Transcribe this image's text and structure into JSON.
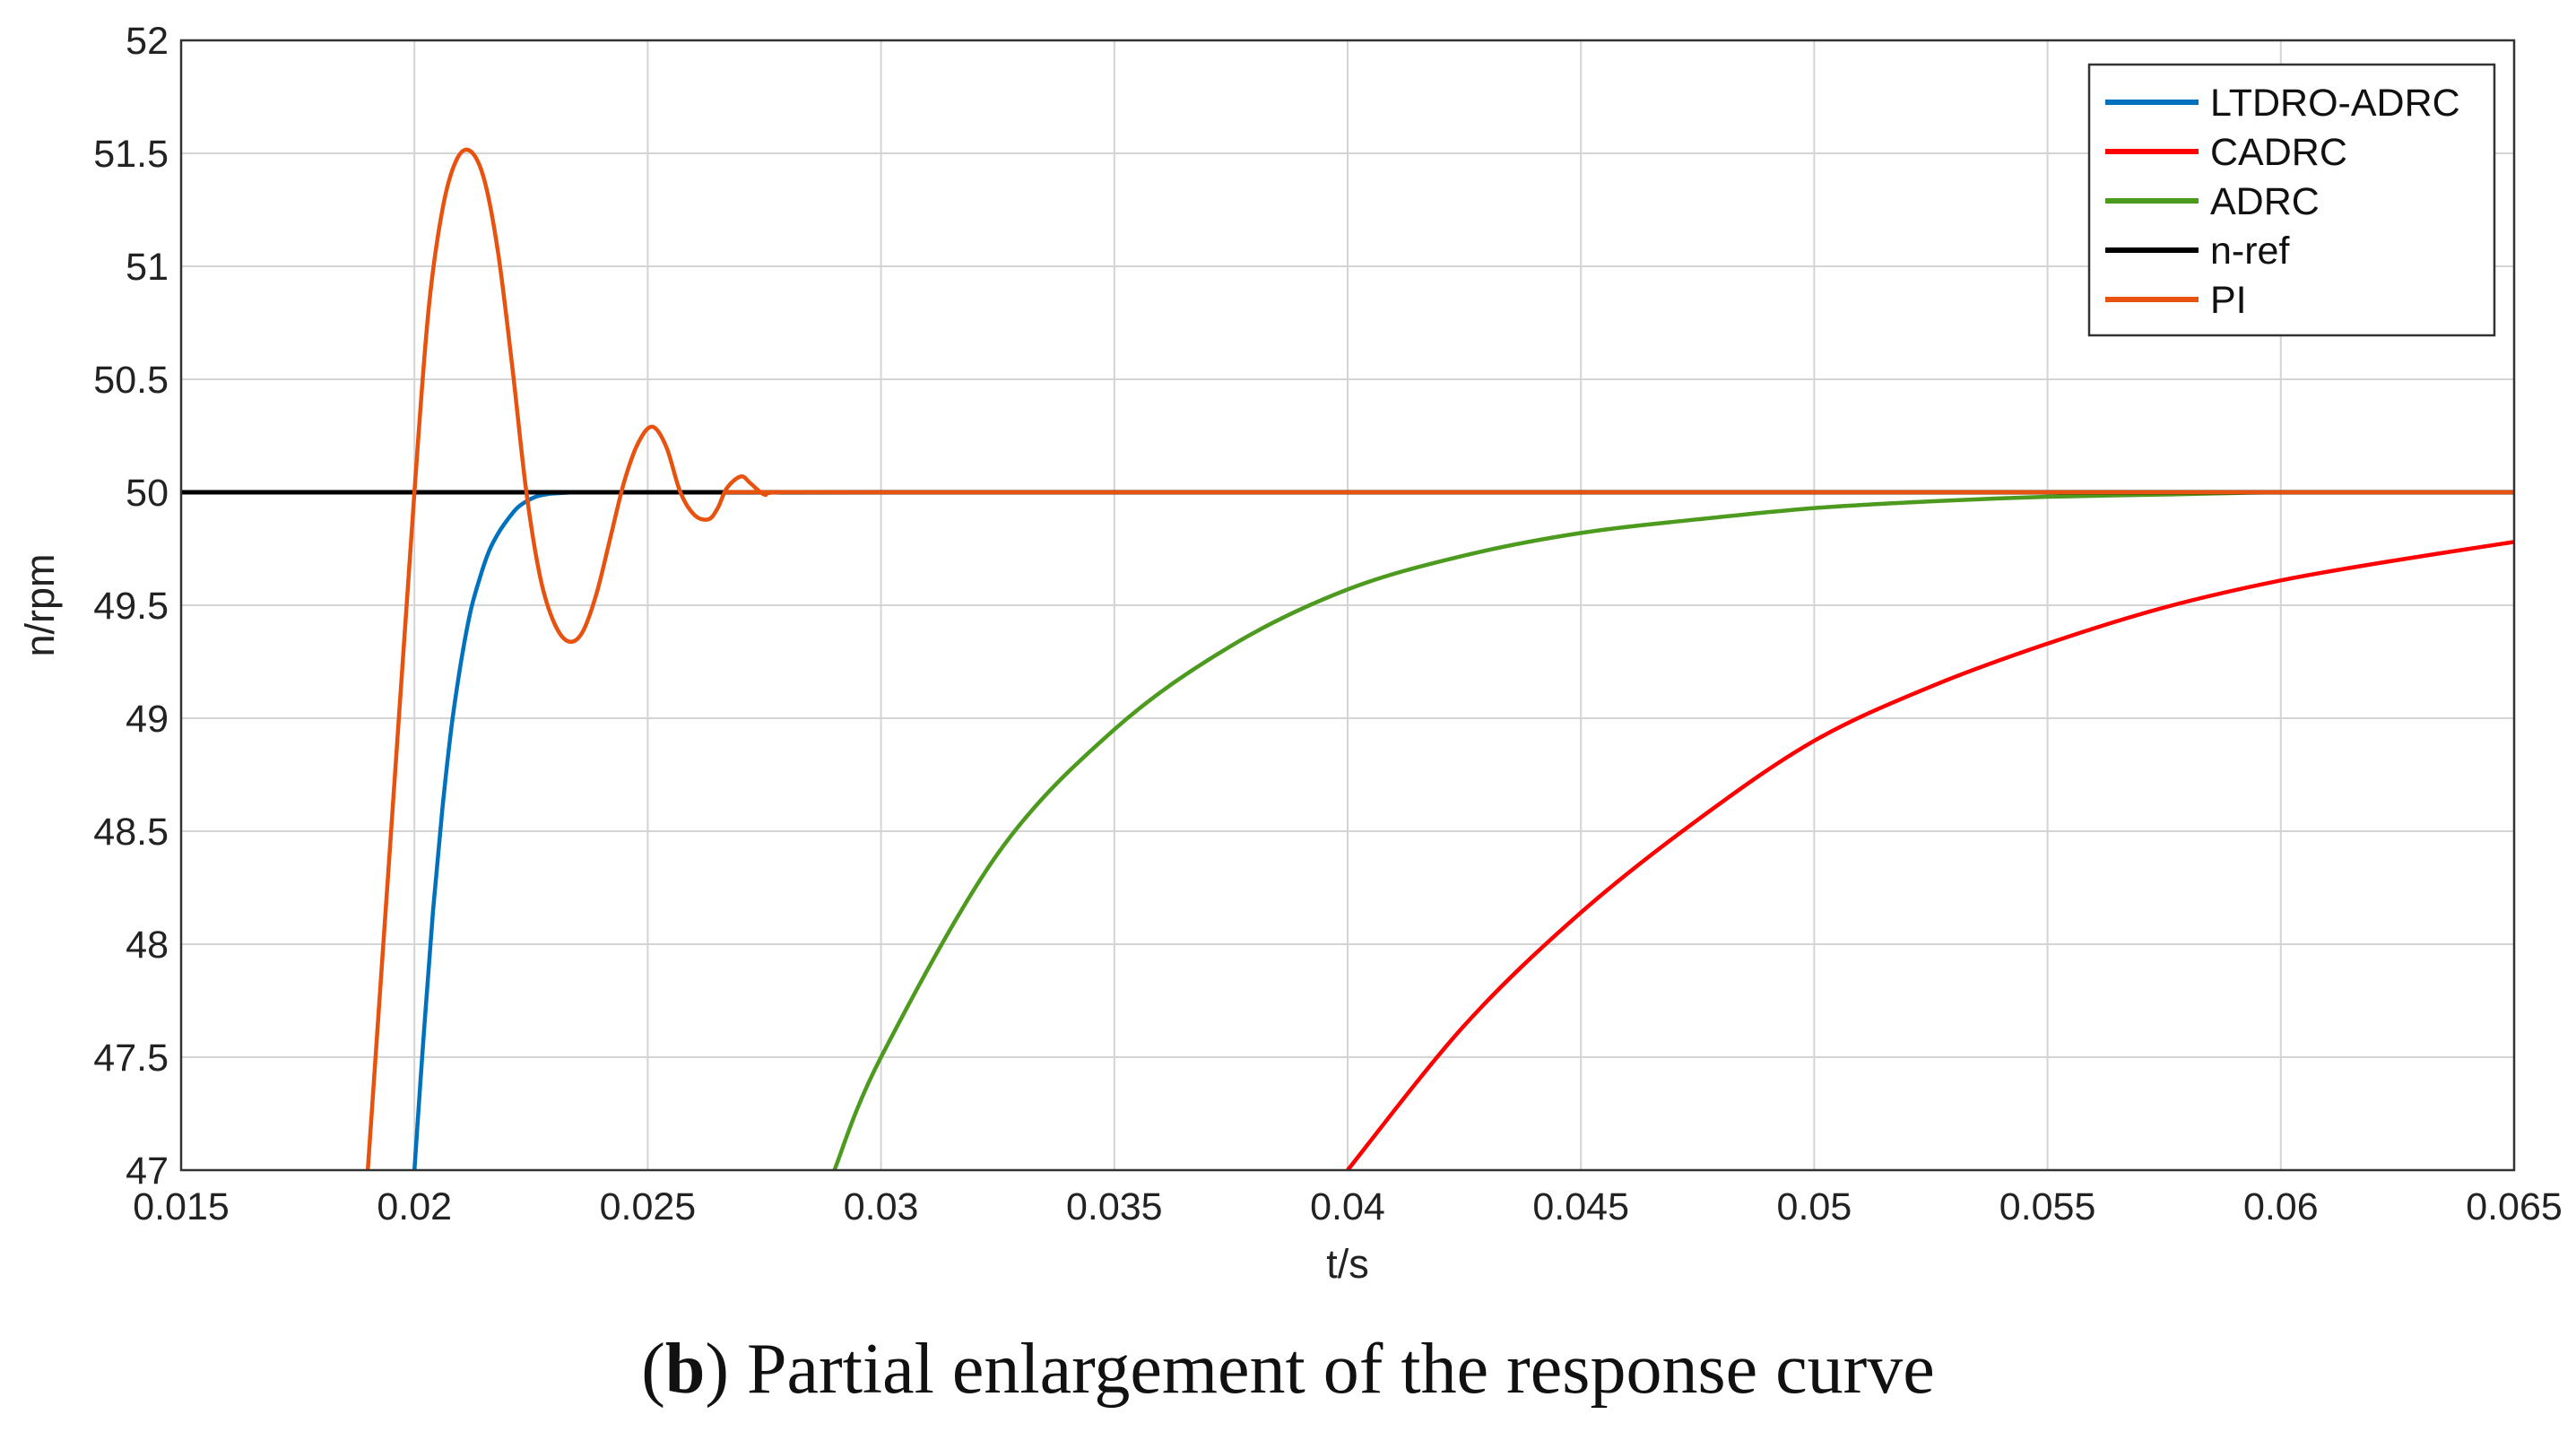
{
  "chart_data": {
    "type": "line",
    "title": "",
    "xlabel": "t/s",
    "ylabel": "n/rpm",
    "xlim": [
      0.015,
      0.065
    ],
    "ylim": [
      47,
      52
    ],
    "xticks": [
      "0.015",
      "0.02",
      "0.025",
      "0.03",
      "0.035",
      "0.04",
      "0.045",
      "0.05",
      "0.055",
      "0.06",
      "0.065"
    ],
    "yticks": [
      "47",
      "47.5",
      "48",
      "48.5",
      "49",
      "49.5",
      "50",
      "50.5",
      "51",
      "51.5",
      "52"
    ],
    "grid": true,
    "legend_position": "top-right",
    "series": [
      {
        "name": "LTDRO-ADRC",
        "color": "#0072BD",
        "x": [
          0.02,
          0.0202,
          0.0204,
          0.0206,
          0.0208,
          0.021,
          0.0212,
          0.0214,
          0.0216,
          0.0218,
          0.022,
          0.0222,
          0.0224,
          0.0226,
          0.0228,
          0.023,
          0.0235,
          0.024,
          0.025,
          0.026,
          0.027,
          0.065
        ],
        "y": [
          47.0,
          47.6,
          48.15,
          48.6,
          48.97,
          49.25,
          49.47,
          49.62,
          49.74,
          49.82,
          49.88,
          49.93,
          49.96,
          49.98,
          49.99,
          49.995,
          50.0,
          50.0,
          50.0,
          50.0,
          50.0,
          50.0
        ]
      },
      {
        "name": "CADRC",
        "color": "#FF0000",
        "x": [
          0.04,
          0.0425,
          0.045,
          0.0475,
          0.05,
          0.0525,
          0.055,
          0.0575,
          0.06,
          0.0625,
          0.065
        ],
        "y": [
          47.0,
          47.64,
          48.14,
          48.55,
          48.9,
          49.14,
          49.33,
          49.49,
          49.61,
          49.7,
          49.78
        ]
      },
      {
        "name": "ADRC",
        "color": "#4C9A1E",
        "x": [
          0.029,
          0.03,
          0.0325,
          0.035,
          0.0375,
          0.04,
          0.0425,
          0.045,
          0.0475,
          0.05,
          0.0525,
          0.055,
          0.0575,
          0.06,
          0.0625,
          0.065
        ],
        "y": [
          47.0,
          47.5,
          48.4,
          48.95,
          49.32,
          49.57,
          49.72,
          49.82,
          49.88,
          49.93,
          49.96,
          49.98,
          49.99,
          50.0,
          50.0,
          50.0
        ]
      },
      {
        "name": "n-ref",
        "color": "#000000",
        "x": [
          0.015,
          0.065
        ],
        "y": [
          50.0,
          50.0
        ]
      },
      {
        "name": "PI",
        "color": "#E8520F",
        "x": [
          0.019,
          0.0195,
          0.02,
          0.0203,
          0.0206,
          0.0209,
          0.0212,
          0.0215,
          0.0218,
          0.0221,
          0.0224,
          0.0227,
          0.023,
          0.0233,
          0.0236,
          0.0239,
          0.0242,
          0.0245,
          0.0248,
          0.0251,
          0.0254,
          0.0257,
          0.026,
          0.0263,
          0.0265,
          0.0267,
          0.027,
          0.0272,
          0.0275,
          0.0278,
          0.03,
          0.065
        ],
        "y": [
          47.0,
          48.5,
          50.0,
          50.8,
          51.25,
          51.47,
          51.51,
          51.38,
          51.05,
          50.55,
          50.0,
          49.62,
          49.42,
          49.34,
          49.38,
          49.55,
          49.8,
          50.05,
          50.22,
          50.29,
          50.2,
          50.0,
          49.9,
          49.88,
          49.93,
          50.02,
          50.07,
          50.04,
          49.99,
          50.0,
          50.0,
          50.0
        ]
      }
    ]
  },
  "caption": {
    "letter": "b",
    "text": " Partial enlargement of the response curve"
  }
}
